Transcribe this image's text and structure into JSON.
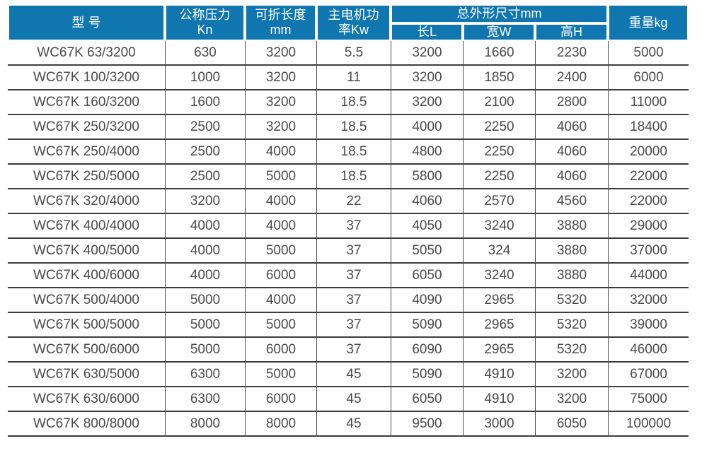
{
  "colors": {
    "header_bg": "#0f76af",
    "header_text": "#ffffff",
    "body_text": "#4a4a4a",
    "row_line": "#3d3d3d",
    "col_line": "#4f4f4f"
  },
  "table": {
    "headers": {
      "model": "型 号",
      "pressure_line1": "公称压力",
      "pressure_line2": "Kn",
      "fold_length_line1": "可折长度",
      "fold_length_line2": "mm",
      "motor_line1": "主电机功",
      "motor_line2": "率Kw",
      "dimensions_group": "总外形尺寸mm",
      "dim_length": "长L",
      "dim_width": "宽W",
      "dim_height": "高H",
      "weight": "重量kg"
    },
    "column_keys": [
      "model",
      "nominal-pressure",
      "fold-length",
      "motor-power",
      "length-l",
      "width-w",
      "height-h",
      "weight"
    ],
    "rows": [
      [
        "WC67K 63/3200",
        "630",
        "3200",
        "5.5",
        "3200",
        "1660",
        "2230",
        "5000"
      ],
      [
        "WC67K 100/3200",
        "1000",
        "3200",
        "11",
        "3200",
        "1850",
        "2400",
        "6000"
      ],
      [
        "WC67K 160/3200",
        "1600",
        "3200",
        "18.5",
        "3200",
        "2100",
        "2800",
        "11000"
      ],
      [
        "WC67K 250/3200",
        "2500",
        "3200",
        "18.5",
        "4000",
        "2250",
        "4060",
        "18400"
      ],
      [
        "WC67K 250/4000",
        "2500",
        "4000",
        "18.5",
        "4800",
        "2250",
        "4060",
        "20000"
      ],
      [
        "WC67K 250/5000",
        "2500",
        "5000",
        "18.5",
        "5800",
        "2250",
        "4060",
        "22000"
      ],
      [
        "WC67K 320/4000",
        "3200",
        "4000",
        "22",
        "4060",
        "2570",
        "4560",
        "22000"
      ],
      [
        "WC67K 400/4000",
        "4000",
        "4000",
        "37",
        "4050",
        "3240",
        "3880",
        "29000"
      ],
      [
        "WC67K 400/5000",
        "4000",
        "5000",
        "37",
        "5050",
        "324",
        "3880",
        "37000"
      ],
      [
        "WC67K 400/6000",
        "4000",
        "6000",
        "37",
        "6050",
        "3240",
        "3880",
        "44000"
      ],
      [
        "WC67K 500/4000",
        "5000",
        "4000",
        "37",
        "4090",
        "2965",
        "5320",
        "32000"
      ],
      [
        "WC67K 500/5000",
        "5000",
        "5000",
        "37",
        "5090",
        "2965",
        "5320",
        "39000"
      ],
      [
        "WC67K 500/6000",
        "5000",
        "6000",
        "37",
        "6090",
        "2965",
        "5320",
        "46000"
      ],
      [
        "WC67K 630/5000",
        "6300",
        "5000",
        "45",
        "5090",
        "4910",
        "3200",
        "67000"
      ],
      [
        "WC67K 630/6000",
        "6300",
        "6000",
        "45",
        "6050",
        "4910",
        "3200",
        "75000"
      ],
      [
        "WC67K 800/8000",
        "8000",
        "8000",
        "45",
        "9500",
        "3000",
        "6050",
        "100000"
      ]
    ]
  }
}
